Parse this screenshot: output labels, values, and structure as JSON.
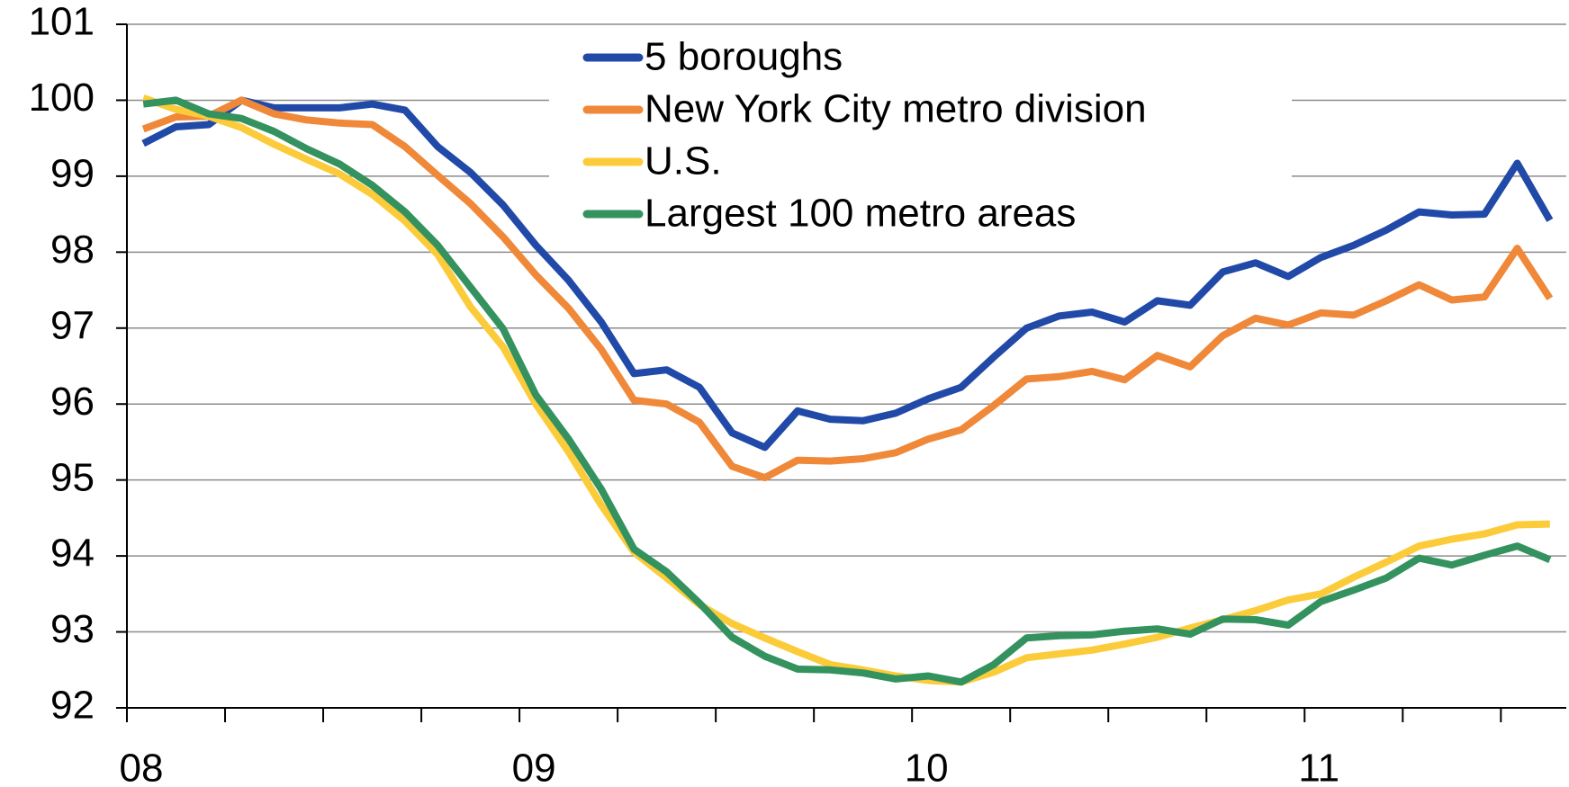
{
  "chart_data": {
    "type": "line",
    "x": [
      0.5,
      1.5,
      2.5,
      3.5,
      4.5,
      5.5,
      6.5,
      7.5,
      8.5,
      9.5,
      10.5,
      11.5,
      12.5,
      13.5,
      14.5,
      15.5,
      16.5,
      17.5,
      18.5,
      19.5,
      20.5,
      21.5,
      22.5,
      23.5,
      24.5,
      25.5,
      26.5,
      27.5,
      28.5,
      29.5,
      30.5,
      31.5,
      32.5,
      33.5,
      34.5,
      35.5,
      36.5,
      37.5,
      38.5,
      39.5,
      40.5,
      41.5,
      42.5,
      43.5
    ],
    "xlim": [
      0,
      44
    ],
    "xticks": [
      {
        "value": 0,
        "label": "08"
      },
      {
        "value": 12,
        "label": "09"
      },
      {
        "value": 24,
        "label": "10"
      },
      {
        "value": 36,
        "label": "11"
      }
    ],
    "xminor_ticks": [
      3,
      6,
      9,
      15,
      18,
      21,
      27,
      30,
      33,
      39,
      42
    ],
    "ylim": [
      92,
      101
    ],
    "yticks": [
      92,
      93,
      94,
      95,
      96,
      97,
      98,
      99,
      100,
      101
    ],
    "grid": true,
    "legend": "top",
    "series": [
      {
        "name": "5 boroughs",
        "color": "#2149a8",
        "values": [
          99.43,
          99.65,
          99.68,
          100.0,
          99.9,
          99.9,
          99.9,
          99.95,
          99.87,
          99.39,
          99.05,
          98.62,
          98.09,
          97.63,
          97.08,
          96.4,
          96.45,
          96.22,
          95.62,
          95.43,
          95.91,
          95.8,
          95.78,
          95.88,
          96.07,
          96.22,
          96.62,
          97.0,
          97.16,
          97.21,
          97.08,
          97.36,
          97.3,
          97.74,
          97.86,
          97.68,
          97.93,
          98.09,
          98.29,
          98.53,
          98.49,
          98.5,
          99.17,
          98.42
        ]
      },
      {
        "name": "New York City metro division",
        "color": "#f0883a",
        "values": [
          99.62,
          99.78,
          99.79,
          100.0,
          99.82,
          99.74,
          99.7,
          99.68,
          99.39,
          99.01,
          98.64,
          98.2,
          97.7,
          97.26,
          96.72,
          96.05,
          96.0,
          95.76,
          95.18,
          95.03,
          95.26,
          95.25,
          95.28,
          95.36,
          95.54,
          95.66,
          95.98,
          96.33,
          96.36,
          96.43,
          96.32,
          96.64,
          96.49,
          96.9,
          97.13,
          97.04,
          97.2,
          97.17,
          97.36,
          97.57,
          97.37,
          97.41,
          98.05,
          97.39
        ]
      },
      {
        "name": "U.S.",
        "color": "#fccb3a",
        "values": [
          100.03,
          99.88,
          99.79,
          99.64,
          99.42,
          99.22,
          99.03,
          98.76,
          98.41,
          97.97,
          97.28,
          96.75,
          96.0,
          95.37,
          94.67,
          94.05,
          93.71,
          93.36,
          93.11,
          92.92,
          92.74,
          92.57,
          92.5,
          92.42,
          92.36,
          92.34,
          92.47,
          92.66,
          92.71,
          92.76,
          92.84,
          92.93,
          93.05,
          93.16,
          93.28,
          93.42,
          93.5,
          93.72,
          93.92,
          94.13,
          94.22,
          94.29,
          94.41,
          94.42
        ]
      },
      {
        "name": "Largest 100 metro areas",
        "color": "#34925f",
        "values": [
          99.95,
          100.0,
          99.82,
          99.76,
          99.59,
          99.36,
          99.16,
          98.88,
          98.53,
          98.09,
          97.54,
          96.99,
          96.12,
          95.54,
          94.88,
          94.09,
          93.79,
          93.38,
          92.93,
          92.68,
          92.51,
          92.5,
          92.46,
          92.38,
          92.42,
          92.34,
          92.57,
          92.92,
          92.95,
          92.96,
          93.01,
          93.04,
          92.97,
          93.17,
          93.16,
          93.09,
          93.4,
          93.55,
          93.71,
          93.97,
          93.88,
          94.01,
          94.13,
          93.95
        ]
      }
    ]
  }
}
